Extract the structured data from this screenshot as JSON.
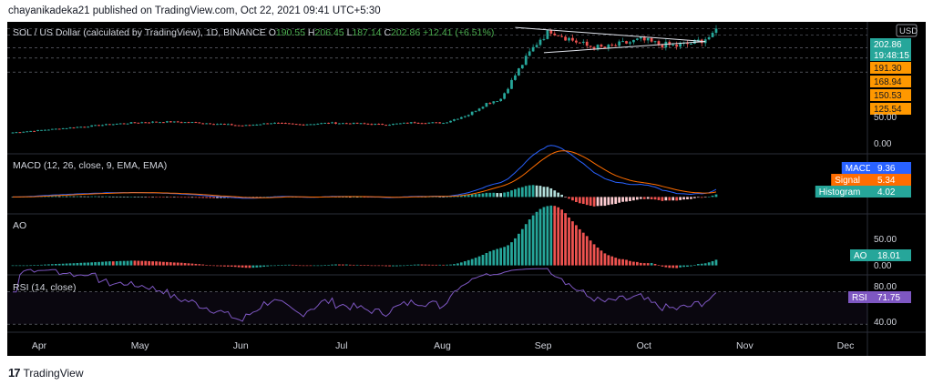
{
  "header": {
    "text": "chayanikadeka21 published on TradingView.com, Oct 22, 2021 09:41 UTC+5:30"
  },
  "footer": {
    "logo": "17",
    "brand": "TradingView"
  },
  "colors": {
    "bg": "#000000",
    "up": "#26a69a",
    "down": "#ef5350",
    "macd": "#2962ff",
    "signal": "#ff6d00",
    "rsi": "#7e57c2",
    "text": "#d1d4dc",
    "green": "#4caf50"
  },
  "chart_data": [
    {
      "type": "candlestick",
      "title": "SOL / US Dollar (calculated by TradingView), 1D, BINANCE",
      "ohlc": [
        {
          "label": "O",
          "value": "190.55"
        },
        {
          "label": "H",
          "value": "206.45"
        },
        {
          "label": "L",
          "value": "187.14"
        },
        {
          "label": "C",
          "value": "202.86"
        }
      ],
      "change": "+12.41 (+6.51%)",
      "currency": "USD",
      "price_badges": [
        {
          "value": "202.86",
          "color": "#26a69a"
        },
        {
          "value": "19:48:15",
          "color": "#26a69a"
        },
        {
          "value": "191.30",
          "color": "#ff9800"
        },
        {
          "value": "168.94",
          "color": "#ff9800"
        },
        {
          "value": "150.53",
          "color": "#ff9800"
        },
        {
          "value": "125.54",
          "color": "#ff9800"
        }
      ],
      "axis_ticks": [
        "50.00",
        "0.00"
      ],
      "ylim": [
        -20,
        215
      ],
      "close_anchors": [
        [
          0,
          18
        ],
        [
          15,
          26
        ],
        [
          28,
          33
        ],
        [
          35,
          36
        ],
        [
          42,
          37
        ],
        [
          50,
          36
        ],
        [
          58,
          33
        ],
        [
          64,
          30
        ],
        [
          72,
          35
        ],
        [
          80,
          32
        ],
        [
          88,
          35
        ],
        [
          96,
          34
        ],
        [
          104,
          32
        ],
        [
          112,
          36
        ],
        [
          120,
          35
        ],
        [
          127,
          50
        ],
        [
          132,
          70
        ],
        [
          136,
          78
        ],
        [
          140,
          120
        ],
        [
          144,
          160
        ],
        [
          147,
          185
        ],
        [
          150,
          200
        ],
        [
          155,
          185
        ],
        [
          160,
          172
        ],
        [
          165,
          168
        ],
        [
          170,
          176
        ],
        [
          175,
          183
        ],
        [
          180,
          175
        ],
        [
          185,
          172
        ],
        [
          190,
          178
        ],
        [
          194,
          188
        ],
        [
          196,
          203
        ]
      ],
      "triangle_lines": [
        {
          "from": [
            140,
            205
          ],
          "to": [
            193,
            180
          ]
        },
        {
          "from": [
            148,
            160
          ],
          "to": [
            193,
            180
          ]
        }
      ],
      "dashed_levels": [
        202.86,
        191.3,
        168.94,
        150.53,
        125.54
      ]
    },
    {
      "type": "bar",
      "title": "MACD (12, 26, close, 9, EMA, EMA)",
      "legend": [
        {
          "name": "MACD",
          "value": "9.36",
          "color": "#2962ff"
        },
        {
          "name": "Signal",
          "value": "5.34",
          "color": "#ff6d00"
        },
        {
          "name": "Histogram",
          "value": "4.02",
          "color": "#26a69a"
        }
      ],
      "ylim": [
        -12,
        30
      ]
    },
    {
      "type": "bar",
      "title": "AO",
      "legend": [
        {
          "name": "AO",
          "value": "18.01",
          "color": "#26a69a"
        }
      ],
      "axis_ticks": [
        "50.00",
        "0.00"
      ],
      "ylim": [
        -15,
        80
      ]
    },
    {
      "type": "line",
      "title": "RSI (14, close)",
      "legend": [
        {
          "name": "RSI",
          "value": "71.75",
          "color": "#7e57c2"
        }
      ],
      "axis_ticks": [
        "80.00",
        "40.00"
      ],
      "ylim": [
        20,
        90
      ],
      "bands": [
        70,
        30
      ],
      "x_ticks": [
        "Apr",
        "May",
        "Jun",
        "Jul",
        "Aug",
        "Sep",
        "Oct",
        "Nov",
        "Dec"
      ]
    }
  ]
}
